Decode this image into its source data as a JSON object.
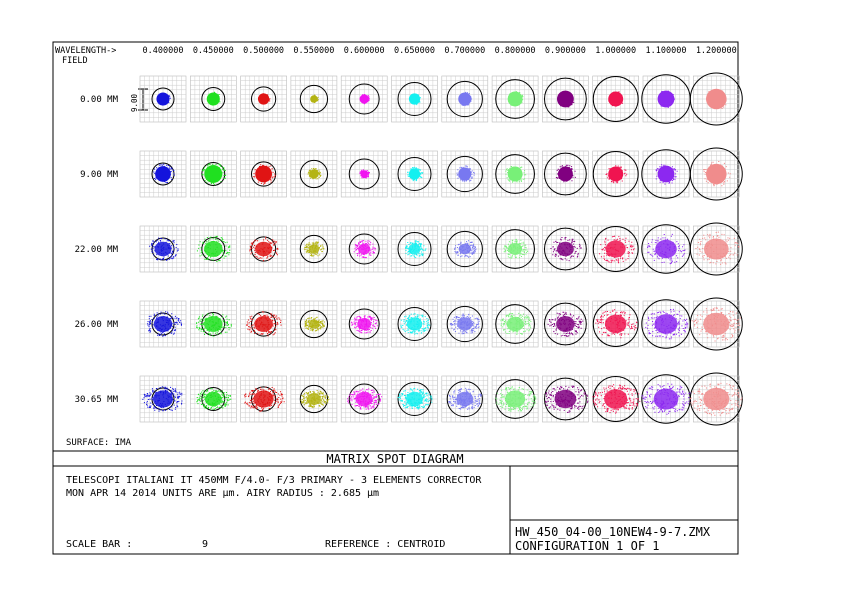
{
  "header": {
    "wavelength_label": "WAVELENGTH->",
    "field_label": "FIELD",
    "wavelengths": [
      "0.400000",
      "0.450000",
      "0.500000",
      "0.550000",
      "0.600000",
      "0.650000",
      "0.700000",
      "0.800000",
      "0.900000",
      "1.000000",
      "1.100000",
      "1.200000"
    ]
  },
  "fields": [
    "0.00 MM",
    "9.00 MM",
    "22.00 MM",
    "26.00 MM",
    "30.65 MM"
  ],
  "scale_tick_label": "9.00",
  "colors": [
    "#1414dc",
    "#20e020",
    "#e01414",
    "#b4b414",
    "#f014f0",
    "#14f0f0",
    "#7878f0",
    "#78f078",
    "#800080",
    "#f01450",
    "#8c28f0",
    "#f08c8c"
  ],
  "spot_sizes": [
    [
      0.35,
      0.35,
      0.3,
      0.2,
      0.25,
      0.3,
      0.35,
      0.4,
      0.45,
      0.4,
      0.45,
      0.55
    ],
    [
      0.42,
      0.48,
      0.45,
      0.25,
      0.2,
      0.3,
      0.35,
      0.4,
      0.4,
      0.4,
      0.45,
      0.55
    ],
    [
      0.55,
      0.6,
      0.55,
      0.35,
      0.4,
      0.4,
      0.4,
      0.45,
      0.55,
      0.65,
      0.7,
      0.8
    ],
    [
      0.6,
      0.6,
      0.6,
      0.35,
      0.45,
      0.5,
      0.5,
      0.55,
      0.6,
      0.7,
      0.75,
      0.85
    ],
    [
      0.65,
      0.55,
      0.65,
      0.45,
      0.55,
      0.55,
      0.55,
      0.65,
      0.7,
      0.75,
      0.8,
      0.85
    ]
  ],
  "airy_radii": [
    0.5,
    0.52,
    0.55,
    0.62,
    0.68,
    0.75,
    0.8,
    0.88,
    0.95,
    1.02,
    1.1,
    1.18
  ],
  "surface_label": "SURFACE: IMA",
  "title": "MATRIX SPOT DIAGRAM",
  "info_line1": "TELESCOPI ITALIANI IT 450MM F/4.0- F/3 PRIMARY -  3 ELEMENTS CORRECTOR",
  "info_line2": "MON APR 14 2014  UNITS ARE µm.  AIRY RADIUS : 2.685 µm",
  "scale_bar_label": "SCALE BAR  :",
  "scale_bar_value": "9",
  "reference_label": "REFERENCE  : CENTROID",
  "filename": "HW_450_04-00_10NEW4-9-7.ZMX",
  "configuration": "CONFIGURATION  1  OF  1"
}
